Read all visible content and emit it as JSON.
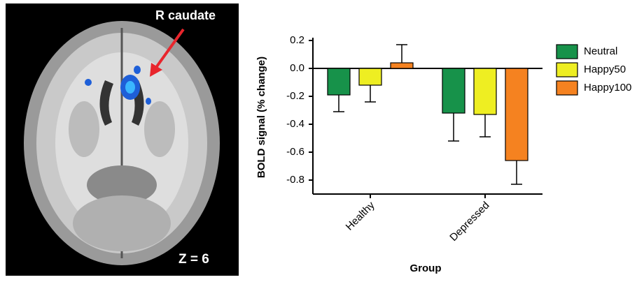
{
  "image_panel": {
    "region_label": "R caudate",
    "slice_label": "Z = 6"
  },
  "chart_data": {
    "type": "bar",
    "y_label": "BOLD signal (% change)",
    "x_label": "Group",
    "categories": [
      "Healthy",
      "Depressed"
    ],
    "series": [
      {
        "name": "Neutral",
        "color": "#17924a",
        "values": [
          -0.19,
          -0.32
        ],
        "errors": [
          0.12,
          0.2
        ]
      },
      {
        "name": "Happy50",
        "color": "#eeee22",
        "values": [
          -0.12,
          -0.33
        ],
        "errors": [
          0.12,
          0.16
        ]
      },
      {
        "name": "Happy100",
        "color": "#f58220",
        "values": [
          0.04,
          -0.66
        ],
        "errors": [
          0.13,
          0.17
        ]
      }
    ],
    "ylim": [
      -0.9,
      0.2
    ],
    "yticks": [
      0.2,
      {
        "value": 0,
        "label": "0.0"
      },
      -0.2,
      -0.4,
      -0.6,
      -0.8
    ],
    "legend": "right"
  }
}
